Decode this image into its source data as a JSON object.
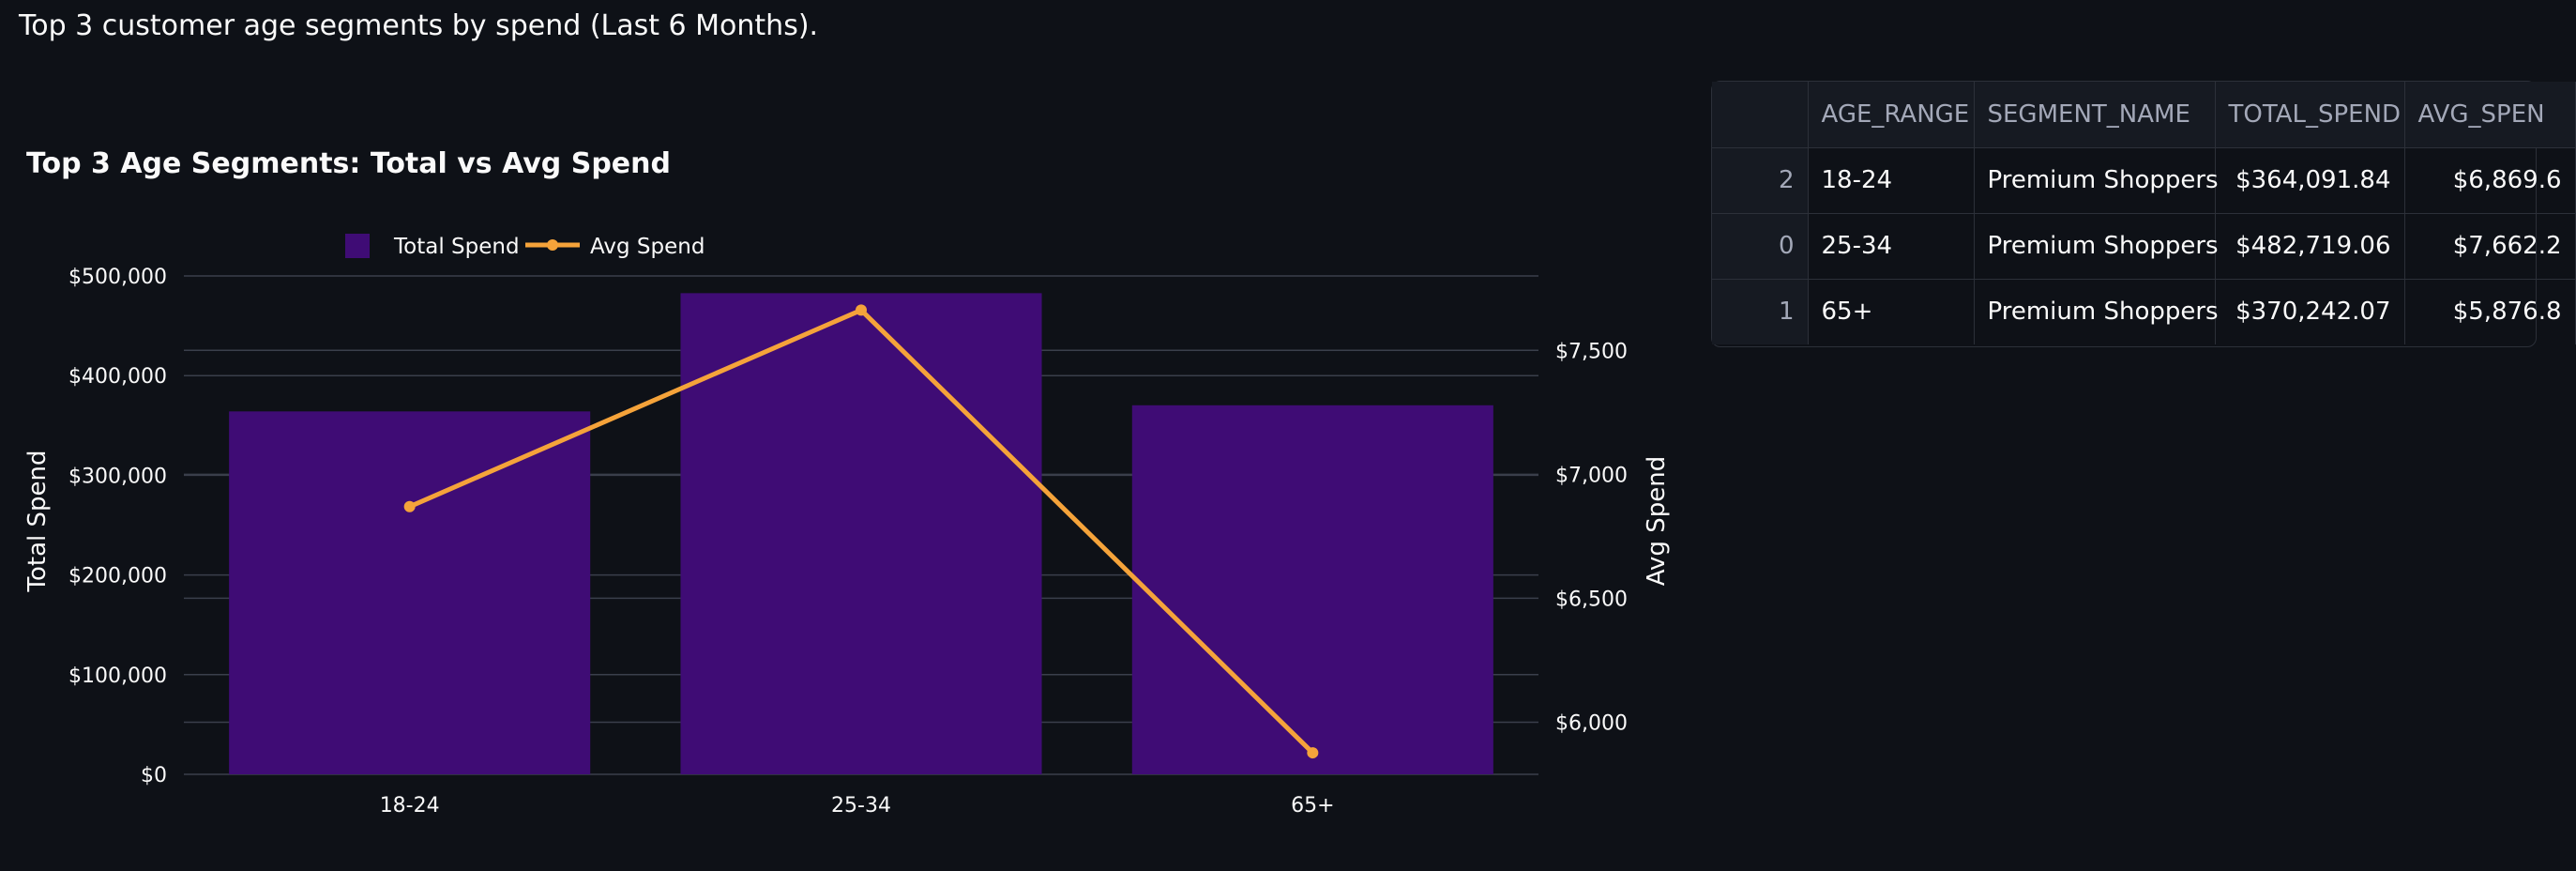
{
  "caption": "Top 3 customer age segments by spend (Last 6 Months).",
  "chart_data": {
    "type": "bar",
    "title": "Top 3 Age Segments: Total vs Avg Spend",
    "categories": [
      "18-24",
      "25-34",
      "65+"
    ],
    "series": [
      {
        "name": "Total Spend",
        "kind": "bar",
        "axis": "left",
        "color": "#3f0c75",
        "values": [
          364091.84,
          482719.06,
          370242.07
        ]
      },
      {
        "name": "Avg Spend",
        "kind": "line",
        "axis": "right",
        "color": "#f5a33a",
        "values": [
          6869.6,
          7662.2,
          5876.8
        ]
      }
    ],
    "ylabel": "Total Spend",
    "y2label": "Avg Spend",
    "ylim": [
      0,
      500000
    ],
    "y2lim": [
      5790,
      7800
    ],
    "yticks": [
      0,
      100000,
      200000,
      300000,
      400000,
      500000
    ],
    "ytick_labels": [
      "$0",
      "$100,000",
      "$200,000",
      "$300,000",
      "$400,000",
      "$500,000"
    ],
    "y2ticks": [
      6000,
      6500,
      7000,
      7500
    ],
    "y2tick_labels": [
      "$6,000",
      "$6,500",
      "$7,000",
      "$7,500"
    ],
    "grid": true,
    "legend": "top"
  },
  "table": {
    "columns": [
      "",
      "AGE_RANGE",
      "SEGMENT_NAME",
      "TOTAL_SPEND",
      "AVG_SPEN"
    ],
    "rows": [
      [
        "2",
        "18-24",
        "Premium Shoppers",
        "$364,091.84",
        "$6,869.6"
      ],
      [
        "0",
        "25-34",
        "Premium Shoppers",
        "$482,719.06",
        "$7,662.2"
      ],
      [
        "1",
        "65+",
        "Premium Shoppers",
        "$370,242.07",
        "$5,876.8"
      ]
    ]
  }
}
